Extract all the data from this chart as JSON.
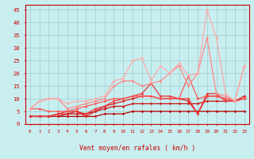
{
  "xlabel": "Vent moyen/en rafales ( km/h )",
  "xlim_min": -0.5,
  "xlim_max": 23.5,
  "ylim_min": 0,
  "ylim_max": 47,
  "yticks": [
    0,
    5,
    10,
    15,
    20,
    25,
    30,
    35,
    40,
    45
  ],
  "xticks": [
    0,
    1,
    2,
    3,
    4,
    5,
    6,
    7,
    8,
    9,
    10,
    11,
    12,
    13,
    14,
    15,
    16,
    17,
    18,
    19,
    20,
    21,
    22,
    23
  ],
  "bg_color": "#c8eef0",
  "grid_color": "#9ecece",
  "tick_color": "#cc0000",
  "label_color": "#cc0000",
  "lines": [
    {
      "x": [
        0,
        1,
        2,
        3,
        4,
        5,
        6,
        7,
        8,
        9,
        10,
        11,
        12,
        13,
        14,
        15,
        16,
        17,
        18,
        19,
        20,
        21,
        22,
        23
      ],
      "y": [
        3,
        3,
        3,
        3,
        3,
        3,
        3,
        3,
        4,
        4,
        4,
        5,
        5,
        5,
        5,
        5,
        5,
        5,
        5,
        5,
        5,
        5,
        5,
        5
      ],
      "color": "#bb0000",
      "lw": 0.9,
      "marker": "D",
      "ms": 1.8
    },
    {
      "x": [
        0,
        1,
        2,
        3,
        4,
        5,
        6,
        7,
        8,
        9,
        10,
        11,
        12,
        13,
        14,
        15,
        16,
        17,
        18,
        19,
        20,
        21,
        22,
        23
      ],
      "y": [
        3,
        3,
        3,
        3,
        4,
        4,
        4,
        5,
        6,
        7,
        7,
        8,
        8,
        8,
        8,
        8,
        8,
        8,
        8,
        9,
        9,
        9,
        9,
        10
      ],
      "color": "#cc1111",
      "lw": 0.9,
      "marker": "D",
      "ms": 1.8
    },
    {
      "x": [
        0,
        1,
        2,
        3,
        4,
        5,
        6,
        7,
        8,
        9,
        10,
        11,
        12,
        13,
        14,
        15,
        16,
        17,
        18,
        19,
        20,
        21,
        22,
        23
      ],
      "y": [
        3,
        3,
        3,
        4,
        4,
        5,
        3,
        5,
        7,
        8,
        9,
        10,
        11,
        11,
        10,
        10,
        10,
        9,
        4,
        11,
        11,
        10,
        9,
        11
      ],
      "color": "#dd2222",
      "lw": 0.9,
      "marker": "D",
      "ms": 1.8
    },
    {
      "x": [
        0,
        1,
        2,
        3,
        4,
        5,
        6,
        7,
        8,
        9,
        10,
        11,
        12,
        13,
        14,
        15,
        16,
        17,
        18,
        19,
        20,
        21,
        22,
        23
      ],
      "y": [
        3,
        3,
        3,
        4,
        5,
        5,
        4,
        6,
        7,
        9,
        10,
        11,
        12,
        16,
        11,
        11,
        10,
        10,
        4,
        12,
        12,
        9,
        9,
        11
      ],
      "color": "#ee3333",
      "lw": 0.9,
      "marker": "D",
      "ms": 1.8
    },
    {
      "x": [
        0,
        1,
        2,
        3,
        4,
        5,
        6,
        7,
        8,
        9,
        10,
        11,
        12,
        13,
        14,
        15,
        16,
        17,
        18,
        19,
        20,
        21,
        22,
        23
      ],
      "y": [
        6,
        6,
        5,
        5,
        5,
        6,
        7,
        8,
        9,
        10,
        10,
        11,
        11,
        11,
        10,
        10,
        10,
        19,
        10,
        11,
        11,
        10,
        9,
        10
      ],
      "color": "#ff5555",
      "lw": 0.9,
      "marker": "D",
      "ms": 1.8
    },
    {
      "x": [
        0,
        1,
        2,
        3,
        4,
        5,
        6,
        7,
        8,
        9,
        10,
        11,
        12,
        13,
        14,
        15,
        16,
        17,
        18,
        19,
        20,
        21,
        22,
        23
      ],
      "y": [
        6,
        9,
        10,
        10,
        6,
        7,
        8,
        9,
        10,
        15,
        17,
        17,
        15,
        16,
        17,
        20,
        23,
        15,
        20,
        34,
        12,
        11,
        9,
        23
      ],
      "color": "#ff8888",
      "lw": 0.9,
      "marker": "D",
      "ms": 1.8
    },
    {
      "x": [
        0,
        1,
        2,
        3,
        4,
        5,
        6,
        7,
        8,
        9,
        10,
        11,
        12,
        13,
        14,
        15,
        16,
        17,
        18,
        19,
        20,
        21,
        22,
        23
      ],
      "y": [
        6,
        9,
        10,
        10,
        8,
        9,
        9,
        10,
        11,
        17,
        18,
        25,
        26,
        17,
        23,
        20,
        24,
        19,
        20,
        45,
        34,
        12,
        9,
        23
      ],
      "color": "#ffaaaa",
      "lw": 0.9,
      "marker": "D",
      "ms": 1.8
    }
  ],
  "arrows": [
    "↙",
    "→",
    "↗",
    "↖",
    "↙",
    "↖",
    "↖",
    "↖",
    "↖",
    "↖",
    "↖",
    "↖",
    "↖",
    "↖",
    "↖",
    "↑",
    "↑",
    "↓",
    "↙",
    "↙",
    "↓",
    "↓",
    "↓",
    "↓"
  ]
}
